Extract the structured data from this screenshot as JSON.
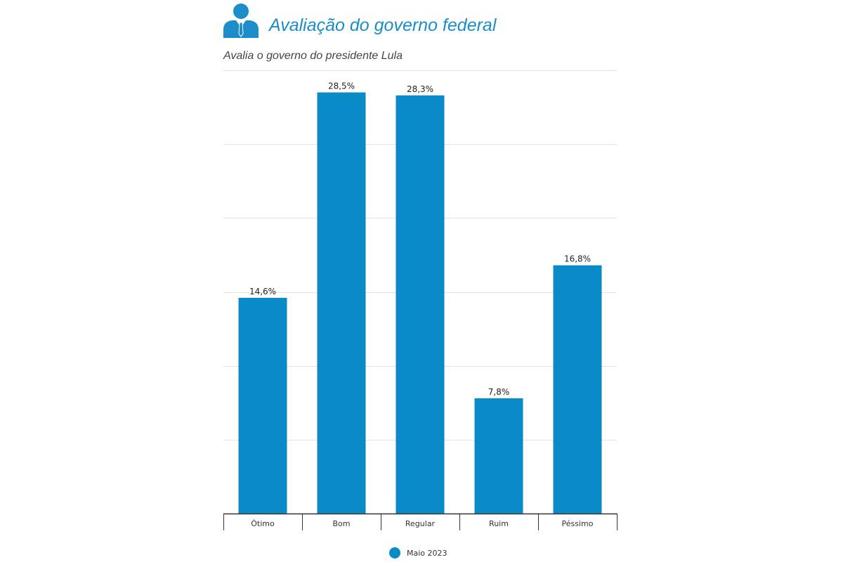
{
  "header": {
    "title": "Avaliação do governo federal",
    "subtitle": "Avalia o governo do presidente Lula",
    "icon": "person-suit-icon"
  },
  "colors": {
    "bar": "#0a8bc7",
    "title": "#1c8dc9",
    "grid": "#e2e2e2",
    "axis": "#333333"
  },
  "chart_data": {
    "type": "bar",
    "title": "Avaliação do governo federal",
    "subtitle": "Avalia o governo do presidente Lula",
    "categories": [
      "Ótimo",
      "Bom",
      "Regular",
      "Ruim",
      "Péssimo"
    ],
    "series": [
      {
        "name": "Maio 2023",
        "values": [
          14.6,
          28.5,
          28.3,
          7.8,
          16.8
        ],
        "labels": [
          "14,6%",
          "28,5%",
          "28,3%",
          "7,8%",
          "16,8%"
        ]
      }
    ],
    "xlabel": "",
    "ylabel": "",
    "ylim": [
      0,
      30
    ],
    "grid": true,
    "y_tick_labels_shown": false,
    "legend": "bottom-center"
  },
  "legend": {
    "label": "Maio 2023"
  }
}
